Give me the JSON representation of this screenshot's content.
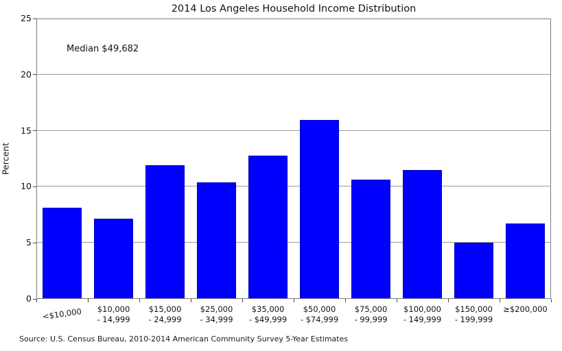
{
  "annotation": "Median $49,682",
  "source": "Source: U.S. Census Bureau, 2010-2014 American Community Survey 5-Year Estimates",
  "colors": {
    "bar": "#0000ff",
    "bar_edge": "#0000c0",
    "grid": "#9a9a9a",
    "frame": "#7b7b7b",
    "text": "#111111",
    "background": "#ffffff"
  },
  "chart_data": {
    "type": "bar",
    "title": "2014 Los Angeles Household Income Distribution",
    "xlabel": "",
    "ylabel": "Percent",
    "ylim": [
      0,
      25
    ],
    "yticks": [
      0,
      5,
      10,
      15,
      20,
      25
    ],
    "grid": true,
    "legend": false,
    "categories": [
      "<$10,000",
      "$10,000\n- 14,999",
      "$15,000\n- 24,999",
      "$25,000\n- 34,999",
      "$35,000\n- $49,999",
      "$50,000\n- $74,999",
      "$75,000\n- 99,999",
      "$100,000\n- 149,999",
      "$150,000\n- 199,999",
      "≥$200,000"
    ],
    "values": [
      8.1,
      7.1,
      11.9,
      10.4,
      12.8,
      16.0,
      10.6,
      11.5,
      5.0,
      6.7
    ],
    "annotations": [
      "Median $49,682"
    ],
    "bar_color": "#0000ff"
  }
}
